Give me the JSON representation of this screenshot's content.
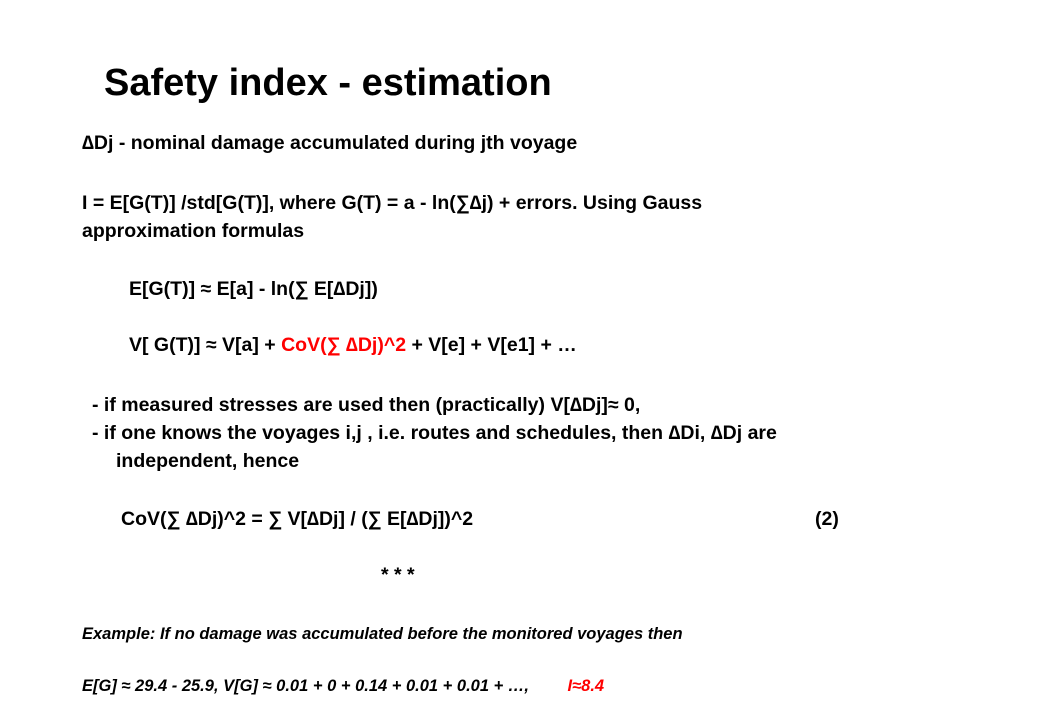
{
  "title": "Safety index - estimation",
  "definition": "∆Dj  -  nominal damage accumulated during jth voyage",
  "index_formula_line1": "I = E[G(T)] /std[G(T)],  where G(T) =  a - ln(∑∆j) + errors. Using Gauss",
  "index_formula_line2": "approximation formulas",
  "expectation_formula": "E[G(T)]   ≈  E[a]  -  ln(∑ E[∆Dj])",
  "variance_formula": {
    "prefix": "V[ G(T)]  ≈  V[a] + ",
    "highlight": "CoV(∑ ∆Dj)^2",
    "suffix": "  + V[e] + V[e1] + …",
    "highlight_color": "#ff0000"
  },
  "bullets": [
    " -  if measured stresses are used then (practically)  V[∆Dj]≈ 0,",
    " -  if one knows the voyages i,j , i.e. routes and schedules,  then ∆Di, ∆Dj are",
    "independent, hence"
  ],
  "cov_formula": "CoV(∑ ∆Dj)^2 = ∑ V[∆Dj]  /  (∑ E[∆Dj])^2",
  "cov_equation_number": "(2)",
  "separator": "* * *",
  "example_line1": "Example: If  no damage was accumulated before the monitored voyages then",
  "example_line2": "E[G] ≈ 29.4 - 25.9,     V[G] ≈ 0.01 + 0 + 0.14 + 0.01 + 0.01 + …,",
  "example_result": "I≈8.4",
  "example_result_color": "#ff0000"
}
